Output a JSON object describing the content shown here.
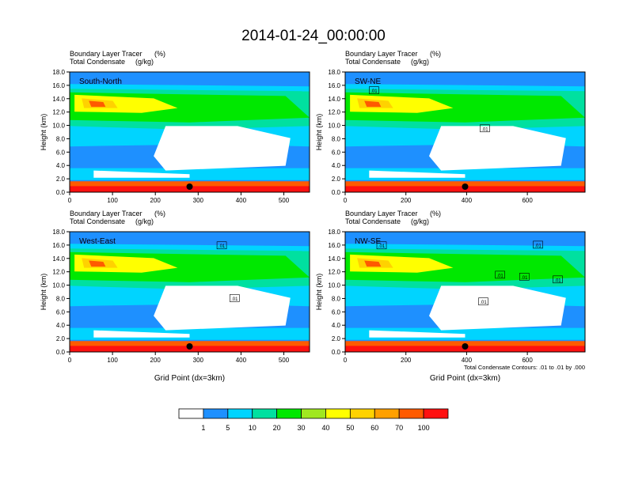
{
  "title": "2014-01-24_00:00:00",
  "chart_data": [
    {
      "type": "heatmap",
      "panel_label": "South-North",
      "line1": "Boundary Layer Tracer",
      "line1_units": "(%)",
      "line2": "Total Condensate",
      "line2_units": "(g/kg)",
      "ylabel": "Height (km)",
      "xlabel": "",
      "xlim": [
        0,
        560
      ],
      "ylim": [
        0,
        18
      ],
      "xticks": [
        0,
        100,
        200,
        300,
        400,
        500
      ],
      "yticks": [
        "0.0",
        "2.0",
        "4.0",
        "6.0",
        "8.0",
        "10.0",
        "12.0",
        "14.0",
        "16.0",
        "18.0"
      ],
      "marker_x": 280,
      "contour_labels": [],
      "note": ""
    },
    {
      "type": "heatmap",
      "panel_label": "SW-NE",
      "line1": "Boundary Layer Tracer",
      "line1_units": "(%)",
      "line2": "Total Condensate",
      "line2_units": "(g/kg)",
      "ylabel": "Height (km)",
      "xlabel": "",
      "xlim": [
        0,
        790
      ],
      "ylim": [
        0,
        18
      ],
      "xticks": [
        0,
        200,
        400,
        600
      ],
      "yticks": [
        "0.0",
        "2.0",
        "4.0",
        "6.0",
        "8.0",
        "10.0",
        "12.0",
        "14.0",
        "16.0",
        "18.0"
      ],
      "marker_x": 395,
      "contour_labels": [
        {
          "x": 95,
          "y": 15.2,
          "text": ".01"
        },
        {
          "x": 460,
          "y": 9.5,
          "text": ".01"
        }
      ],
      "note": ""
    },
    {
      "type": "heatmap",
      "panel_label": "West-East",
      "line1": "Boundary Layer Tracer",
      "line1_units": "(%)",
      "line2": "Total Condensate",
      "line2_units": "(g/kg)",
      "ylabel": "Height (km)",
      "xlabel": "Grid Point (dx=3km)",
      "xlim": [
        0,
        560
      ],
      "ylim": [
        0,
        18
      ],
      "xticks": [
        0,
        100,
        200,
        300,
        400,
        500
      ],
      "yticks": [
        "0.0",
        "2.0",
        "4.0",
        "6.0",
        "8.0",
        "10.0",
        "12.0",
        "14.0",
        "16.0",
        "18.0"
      ],
      "marker_x": 280,
      "contour_labels": [
        {
          "x": 355,
          "y": 15.9,
          "text": ".01"
        },
        {
          "x": 385,
          "y": 8.0,
          "text": ".01"
        }
      ],
      "note": ""
    },
    {
      "type": "heatmap",
      "panel_label": "NW-SE",
      "line1": "Boundary Layer Tracer",
      "line1_units": "(%)",
      "line2": "Total Condensate",
      "line2_units": "(g/kg)",
      "ylabel": "Height (km)",
      "xlabel": "Grid Point (dx=3km)",
      "xlim": [
        0,
        790
      ],
      "ylim": [
        0,
        18
      ],
      "xticks": [
        0,
        200,
        400,
        600
      ],
      "yticks": [
        "0.0",
        "2.0",
        "4.0",
        "6.0",
        "8.0",
        "10.0",
        "12.0",
        "14.0",
        "16.0",
        "18.0"
      ],
      "marker_x": 395,
      "contour_labels": [
        {
          "x": 120,
          "y": 15.9,
          "text": ".01"
        },
        {
          "x": 510,
          "y": 11.5,
          "text": ".01"
        },
        {
          "x": 590,
          "y": 11.2,
          "text": ".01"
        },
        {
          "x": 700,
          "y": 10.8,
          "text": ".01"
        },
        {
          "x": 455,
          "y": 7.5,
          "text": ".01"
        },
        {
          "x": 635,
          "y": 16.0,
          "text": ".01"
        }
      ],
      "note": "Total Condensate Contours: .01 to .01 by .000"
    }
  ],
  "colorbar": {
    "colors": [
      "#ffffff",
      "#1e90ff",
      "#00d4ff",
      "#00e0a0",
      "#00e800",
      "#a0e820",
      "#ffff00",
      "#ffd200",
      "#ffa000",
      "#ff5a00",
      "#ff1010"
    ],
    "labels": [
      "1",
      "5",
      "10",
      "20",
      "30",
      "40",
      "50",
      "60",
      "70",
      "100"
    ]
  },
  "colors": {
    "marker": "#000000",
    "contour": "#000000"
  }
}
